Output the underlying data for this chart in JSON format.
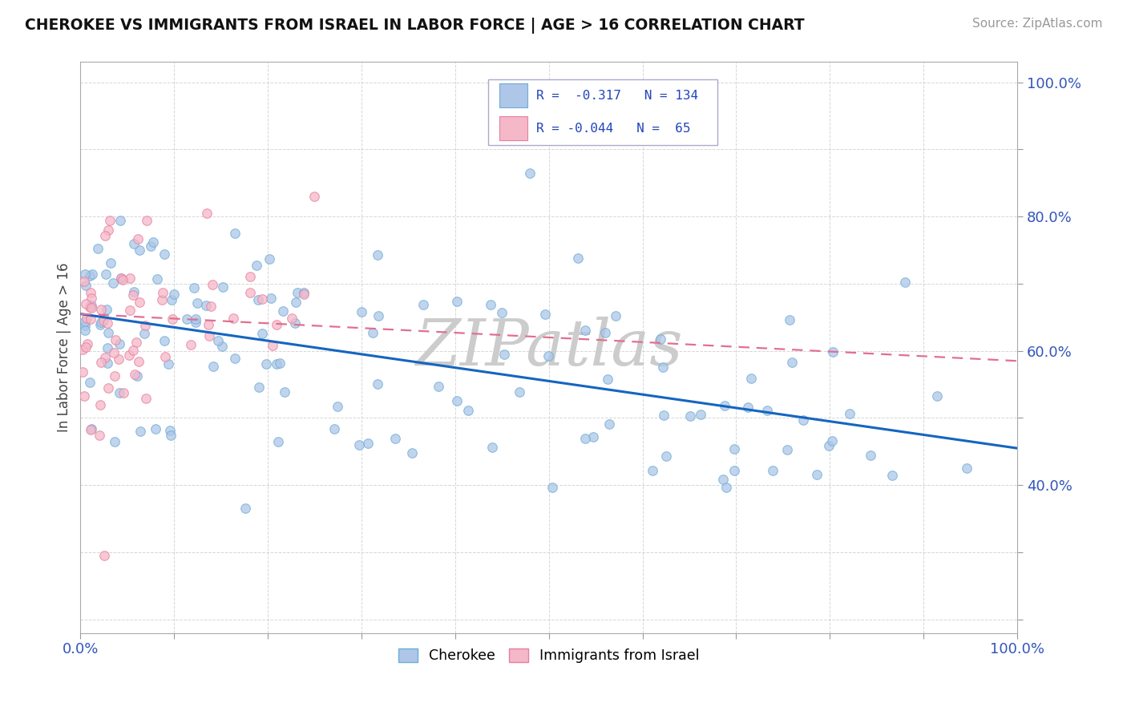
{
  "title": "CHEROKEE VS IMMIGRANTS FROM ISRAEL IN LABOR FORCE | AGE > 16 CORRELATION CHART",
  "source": "Source: ZipAtlas.com",
  "ylabel": "In Labor Force | Age > 16",
  "cherokee_color": "#aec6e8",
  "cherokee_edge": "#6baed6",
  "israel_color": "#f4b8c8",
  "israel_edge": "#e87fa0",
  "trend_cherokee_color": "#1565c0",
  "trend_israel_color": "#e07090",
  "background_color": "#ffffff",
  "grid_color": "#cccccc",
  "xlim": [
    0.0,
    1.0
  ],
  "ylim": [
    0.18,
    1.03
  ],
  "xticks": [
    0.0,
    0.1,
    0.2,
    0.3,
    0.4,
    0.5,
    0.6,
    0.7,
    0.8,
    0.9,
    1.0
  ],
  "yticks": [
    0.2,
    0.3,
    0.4,
    0.5,
    0.6,
    0.7,
    0.8,
    0.9,
    1.0
  ],
  "ytick_show": [
    0.4,
    0.6,
    0.8,
    1.0
  ],
  "trend_cherokee_start": 0.655,
  "trend_cherokee_end": 0.455,
  "trend_israel_start": 0.655,
  "trend_israel_end": 0.585
}
